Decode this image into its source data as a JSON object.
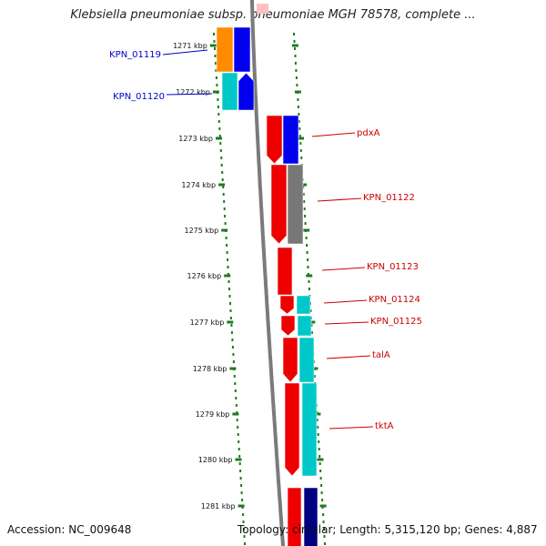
{
  "title": "Klebsiella pneumoniae subsp. pneumoniae MGH 78578, complete ...",
  "accession": "Accession: NC_009648",
  "topology": "Topology: circular; Length: 5,315,120 bp; Genes: 4,887",
  "colors": {
    "forward_label": "#0000cc",
    "reverse_label": "#cc0000",
    "tick": "#1f7a1f",
    "backbone": "#7a7a7a",
    "orange": "#ff8c00",
    "blue": "#0000ee",
    "cyan": "#00c8c8",
    "red": "#ee0000",
    "gray": "#777777",
    "navy": "#000080",
    "pink": "#ffc0c0"
  },
  "ticks": [
    {
      "label": "1271 kbp"
    },
    {
      "label": "1272 kbp"
    },
    {
      "label": "1273 kbp"
    },
    {
      "label": "1274 kbp"
    },
    {
      "label": "1275 kbp"
    },
    {
      "label": "1276 kbp"
    },
    {
      "label": "1277 kbp"
    },
    {
      "label": "1278 kbp"
    },
    {
      "label": "1279 kbp"
    },
    {
      "label": "1280 kbp"
    },
    {
      "label": "1281 kbp"
    }
  ],
  "gene_labels": [
    {
      "name": "KPN_01119",
      "strand": "forward"
    },
    {
      "name": "KPN_01120",
      "strand": "forward"
    },
    {
      "name": "pdxA",
      "strand": "reverse"
    },
    {
      "name": "KPN_01122",
      "strand": "reverse"
    },
    {
      "name": "KPN_01123",
      "strand": "reverse"
    },
    {
      "name": "KPN_01124",
      "strand": "reverse"
    },
    {
      "name": "KPN_01125",
      "strand": "reverse"
    },
    {
      "name": "talA",
      "strand": "reverse"
    },
    {
      "name": "tktA",
      "strand": "reverse"
    }
  ]
}
